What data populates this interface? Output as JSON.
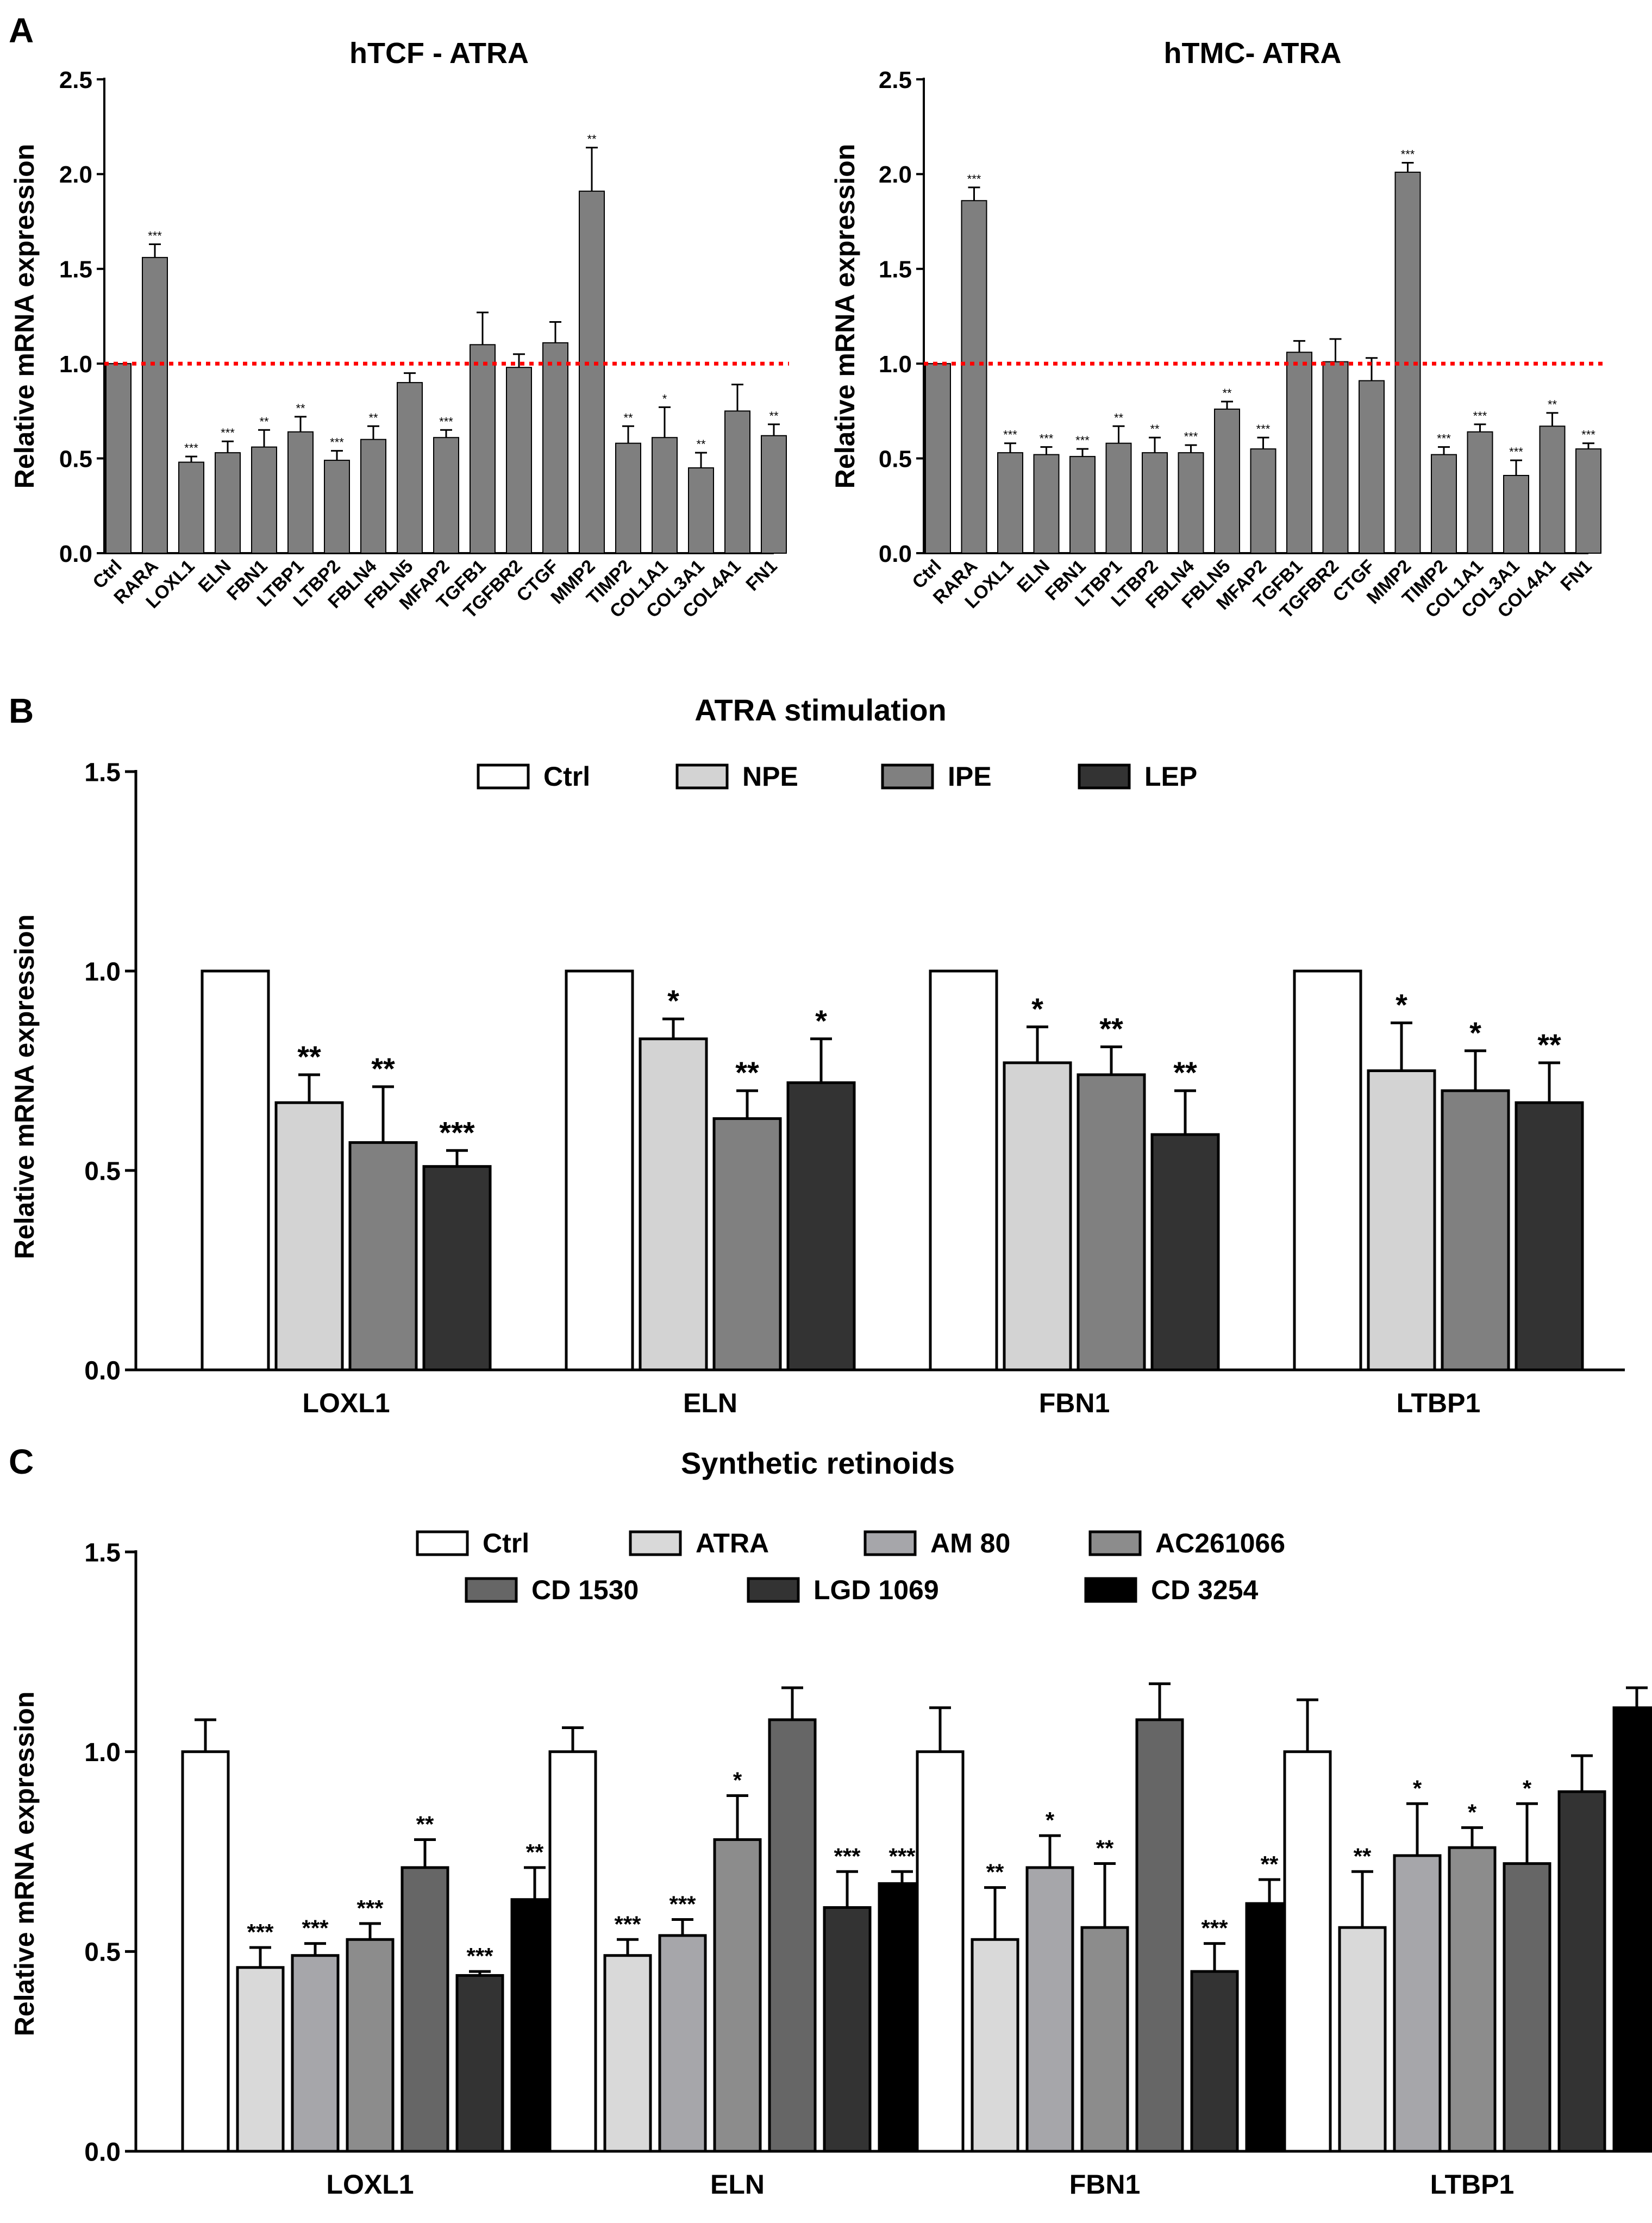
{
  "panels": {
    "A": {
      "letter": "A"
    },
    "B": {
      "letter": "B"
    },
    "C": {
      "letter": "C"
    }
  },
  "chart_data": [
    {
      "id": "A1",
      "type": "bar",
      "title": "hTCF - ATRA",
      "ylabel": "Relative mRNA expression",
      "xlabel": "",
      "ylim": [
        0,
        2.5
      ],
      "yticks": [
        "0.0",
        "0.5",
        "1.0",
        "1.5",
        "2.0",
        "2.5"
      ],
      "reference_line": 1.0,
      "reference_color": "#ff0000",
      "bar_color": "#7f7f7f",
      "categories": [
        "Ctrl",
        "RARA",
        "LOXL1",
        "ELN",
        "FBN1",
        "LTBP1",
        "LTBP2",
        "FBLN4",
        "FBLN5",
        "MFAP2",
        "TGFB1",
        "TGFBR2",
        "CTGF",
        "MMP2",
        "TIMP2",
        "COL1A1",
        "COL3A1",
        "COL4A1",
        "FN1"
      ],
      "values": [
        1.0,
        1.56,
        0.48,
        0.53,
        0.56,
        0.64,
        0.49,
        0.6,
        0.9,
        0.61,
        1.1,
        0.98,
        1.11,
        1.91,
        0.58,
        0.61,
        0.45,
        0.75,
        0.62
      ],
      "errors": [
        0.0,
        0.07,
        0.03,
        0.06,
        0.09,
        0.08,
        0.05,
        0.07,
        0.05,
        0.04,
        0.17,
        0.07,
        0.11,
        0.23,
        0.09,
        0.16,
        0.08,
        0.14,
        0.06
      ],
      "significance": [
        "",
        "***",
        "***",
        "***",
        "**",
        "**",
        "***",
        "**",
        "",
        "***",
        "",
        "",
        "",
        "**",
        "**",
        "*",
        "**",
        "",
        "**"
      ]
    },
    {
      "id": "A2",
      "type": "bar",
      "title": "hTMC- ATRA",
      "ylabel": "Relative mRNA expression",
      "xlabel": "",
      "ylim": [
        0,
        2.5
      ],
      "yticks": [
        "0.0",
        "0.5",
        "1.0",
        "1.5",
        "2.0",
        "2.5"
      ],
      "reference_line": 1.0,
      "reference_color": "#ff0000",
      "bar_color": "#7f7f7f",
      "categories": [
        "Ctrl",
        "RARA",
        "LOXL1",
        "ELN",
        "FBN1",
        "LTBP1",
        "LTBP2",
        "FBLN4",
        "FBLN5",
        "MFAP2",
        "TGFB1",
        "TGFBR2",
        "CTGF",
        "MMP2",
        "TIMP2",
        "COL1A1",
        "COL3A1",
        "COL4A1",
        "FN1"
      ],
      "values": [
        1.0,
        1.86,
        0.53,
        0.52,
        0.51,
        0.58,
        0.53,
        0.53,
        0.76,
        0.55,
        1.06,
        1.01,
        0.91,
        2.01,
        0.52,
        0.64,
        0.41,
        0.67,
        0.55
      ],
      "errors": [
        0.0,
        0.07,
        0.05,
        0.04,
        0.04,
        0.09,
        0.08,
        0.04,
        0.04,
        0.06,
        0.06,
        0.12,
        0.12,
        0.05,
        0.04,
        0.04,
        0.08,
        0.07,
        0.03
      ],
      "significance": [
        "",
        "***",
        "***",
        "***",
        "***",
        "**",
        "**",
        "***",
        "**",
        "***",
        "",
        "",
        "",
        "***",
        "***",
        "***",
        "***",
        "**",
        "***"
      ]
    },
    {
      "id": "B",
      "type": "bar",
      "title": "ATRA stimulation",
      "ylabel": "Relative mRNA expression",
      "xlabel": "",
      "ylim": [
        0,
        1.5
      ],
      "yticks": [
        "0.0",
        "0.5",
        "1.0",
        "1.5"
      ],
      "categories": [
        "LOXL1",
        "ELN",
        "FBN1",
        "LTBP1"
      ],
      "legend": "top",
      "series": [
        {
          "name": "Ctrl",
          "color": "#ffffff",
          "values": [
            1.0,
            1.0,
            1.0,
            1.0
          ],
          "errors": [
            0,
            0,
            0,
            0
          ],
          "significance": [
            "",
            "",
            "",
            ""
          ]
        },
        {
          "name": "NPE",
          "color": "#d3d3d3",
          "values": [
            0.67,
            0.83,
            0.77,
            0.75
          ],
          "errors": [
            0.07,
            0.05,
            0.09,
            0.12
          ],
          "significance": [
            "**",
            "*",
            "*",
            "*"
          ]
        },
        {
          "name": "IPE",
          "color": "#808080",
          "values": [
            0.57,
            0.63,
            0.74,
            0.7
          ],
          "errors": [
            0.14,
            0.07,
            0.07,
            0.1
          ],
          "significance": [
            "**",
            "**",
            "**",
            "*"
          ]
        },
        {
          "name": "LEP",
          "color": "#333333",
          "values": [
            0.51,
            0.72,
            0.59,
            0.67
          ],
          "errors": [
            0.04,
            0.11,
            0.11,
            0.1
          ],
          "significance": [
            "***",
            "*",
            "**",
            "**"
          ]
        }
      ]
    },
    {
      "id": "C",
      "type": "bar",
      "title": "Synthetic retinoids",
      "ylabel": "Relative mRNA expression",
      "xlabel": "",
      "ylim": [
        0,
        1.5
      ],
      "yticks": [
        "0.0",
        "0.5",
        "1.0",
        "1.5"
      ],
      "categories": [
        "LOXL1",
        "ELN",
        "FBN1",
        "LTBP1"
      ],
      "legend": "top",
      "series": [
        {
          "name": "Ctrl",
          "color": "#ffffff",
          "values": [
            1.0,
            1.0,
            1.0,
            1.0
          ],
          "errors": [
            0.08,
            0.06,
            0.11,
            0.13
          ],
          "significance": [
            "",
            "",
            "",
            ""
          ]
        },
        {
          "name": "ATRA",
          "color": "#d9d9d9",
          "values": [
            0.46,
            0.49,
            0.53,
            0.56
          ],
          "errors": [
            0.05,
            0.04,
            0.13,
            0.14
          ],
          "significance": [
            "***",
            "***",
            "**",
            "**"
          ]
        },
        {
          "name": "AM 80",
          "color": "#a6a6aa",
          "values": [
            0.49,
            0.54,
            0.71,
            0.74
          ],
          "errors": [
            0.03,
            0.04,
            0.08,
            0.13
          ],
          "significance": [
            "***",
            "***",
            "*",
            "*"
          ]
        },
        {
          "name": "AC261066",
          "color": "#8c8c8c",
          "values": [
            0.53,
            0.78,
            0.56,
            0.76
          ],
          "errors": [
            0.04,
            0.11,
            0.16,
            0.05
          ],
          "significance": [
            "***",
            "*",
            "**",
            "*"
          ]
        },
        {
          "name": "CD 1530",
          "color": "#666666",
          "values": [
            0.71,
            1.08,
            1.08,
            0.72
          ],
          "errors": [
            0.07,
            0.08,
            0.09,
            0.15
          ],
          "significance": [
            "**",
            "",
            "",
            "*"
          ]
        },
        {
          "name": "LGD 1069",
          "color": "#333333",
          "values": [
            0.44,
            0.61,
            0.45,
            0.9
          ],
          "errors": [
            0.01,
            0.09,
            0.07,
            0.09
          ],
          "significance": [
            "***",
            "***",
            "***",
            ""
          ]
        },
        {
          "name": "CD 3254",
          "color": "#000000",
          "values": [
            0.63,
            0.67,
            0.62,
            1.11
          ],
          "errors": [
            0.08,
            0.03,
            0.06,
            0.05
          ],
          "significance": [
            "**",
            "***",
            "**",
            ""
          ]
        }
      ]
    }
  ]
}
